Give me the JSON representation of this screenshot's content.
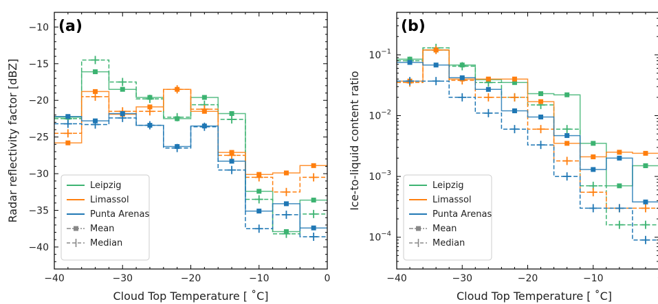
{
  "chart_data": [
    {
      "type": "line",
      "panel_label": "(a)",
      "xlabel": "Cloud Top Temperature [$^\\circ$C]",
      "xlabel_text": "Cloud Top Temperature [ ˚C]",
      "ylabel": "Radar reflectivity factor [dBZ]",
      "xlim": [
        -40,
        0
      ],
      "ylim": [
        -43,
        -8
      ],
      "yscale": "linear",
      "xticks": [
        -40,
        -30,
        -20,
        -10,
        0
      ],
      "yticks": [
        -40,
        -35,
        -30,
        -25,
        -20,
        -15,
        -10
      ],
      "xtick_labels": [
        "−40",
        "−30",
        "−20",
        "−10",
        "0"
      ],
      "ytick_labels": [
        "−40",
        "−35",
        "−30",
        "−25",
        "−20",
        "−15",
        "−10"
      ],
      "bin_edges": [
        -40,
        -36,
        -32,
        -28,
        -24,
        -20,
        -16,
        -12,
        -8,
        -4,
        0
      ],
      "legend_position": "lower-left",
      "series": [
        {
          "name": "Leipzig",
          "color": "#3cb371",
          "mean": [
            -22.3,
            -16.1,
            -18.5,
            -19.6,
            -22.5,
            -19.6,
            -21.8,
            -32.4,
            -37.9,
            -33.6
          ],
          "median": [
            -22.5,
            -14.5,
            -17.5,
            -19.8,
            -22.3,
            -20.6,
            -22.6,
            -33.5,
            -38.2,
            -35.5
          ]
        },
        {
          "name": "Limassol",
          "color": "#ff7f0e",
          "mean": [
            -25.8,
            -18.8,
            -21.9,
            -20.9,
            -18.5,
            -21.5,
            -27.1,
            -30.1,
            -29.9,
            -28.9
          ],
          "median": [
            -24.5,
            -19.5,
            -21.5,
            -21.5,
            -18.5,
            -21.2,
            -27.5,
            -30.5,
            -32.5,
            -30.5
          ]
        },
        {
          "name": "Punta Arenas",
          "color": "#1f77b4",
          "mean": [
            -22.2,
            -22.8,
            -21.8,
            -23.4,
            -26.3,
            -23.5,
            -28.3,
            -35.1,
            -34.1,
            -37.4
          ],
          "median": [
            -23.2,
            -23.3,
            -22.4,
            -23.4,
            -26.5,
            -23.6,
            -29.5,
            -37.5,
            -35.6,
            -38.6
          ]
        }
      ]
    },
    {
      "type": "line",
      "panel_label": "(b)",
      "xlabel_text": "Cloud Top Temperature [ ˚C]",
      "ylabel": "Ice-to-liquid content ratio",
      "xlim": [
        -40,
        0
      ],
      "ylim": [
        3e-05,
        0.5
      ],
      "yscale": "log",
      "xticks": [
        -40,
        -30,
        -20,
        -10
      ],
      "xtick_labels": [
        "−40",
        "−30",
        "−20",
        "−10"
      ],
      "x_partial_label": "0",
      "yticks": [
        0.0001,
        0.001,
        0.01,
        0.1
      ],
      "ytick_base": "10",
      "ytick_exponents": [
        "−4",
        "−3",
        "−2",
        "−1"
      ],
      "bin_edges": [
        -40,
        -36,
        -32,
        -28,
        -24,
        -20,
        -16,
        -12,
        -8,
        -4,
        0
      ],
      "legend_position": "lower-left",
      "series": [
        {
          "name": "Leipzig",
          "color": "#3cb371",
          "mean": [
            0.085,
            0.12,
            0.068,
            0.039,
            0.035,
            0.023,
            0.022,
            0.0035,
            0.0007,
            0.0015
          ],
          "median": [
            0.08,
            0.13,
            0.065,
            0.035,
            0.02,
            0.015,
            0.006,
            0.0007,
            0.00016,
            0.00016
          ]
        },
        {
          "name": "Limassol",
          "color": "#ff7f0e",
          "mean": [
            0.037,
            0.12,
            0.04,
            0.04,
            0.04,
            0.017,
            0.0035,
            0.0021,
            0.0025,
            0.0024
          ],
          "median": [
            0.035,
            0.12,
            0.038,
            0.02,
            0.02,
            0.006,
            0.0018,
            0.00055,
            0.0003,
            0.0003
          ]
        },
        {
          "name": "Punta Arenas",
          "color": "#1f77b4",
          "mean": [
            0.075,
            0.068,
            0.042,
            0.027,
            0.012,
            0.0095,
            0.0047,
            0.0013,
            0.002,
            0.00038
          ],
          "median": [
            0.037,
            0.037,
            0.02,
            0.011,
            0.006,
            0.0033,
            0.001,
            0.0003,
            0.0003,
            9e-05
          ]
        }
      ]
    }
  ],
  "legend": {
    "series_names": [
      "Leipzig",
      "Limassol",
      "Punta Arenas"
    ],
    "style_entries": [
      "Mean",
      "Median"
    ],
    "style_color": "#888888"
  }
}
